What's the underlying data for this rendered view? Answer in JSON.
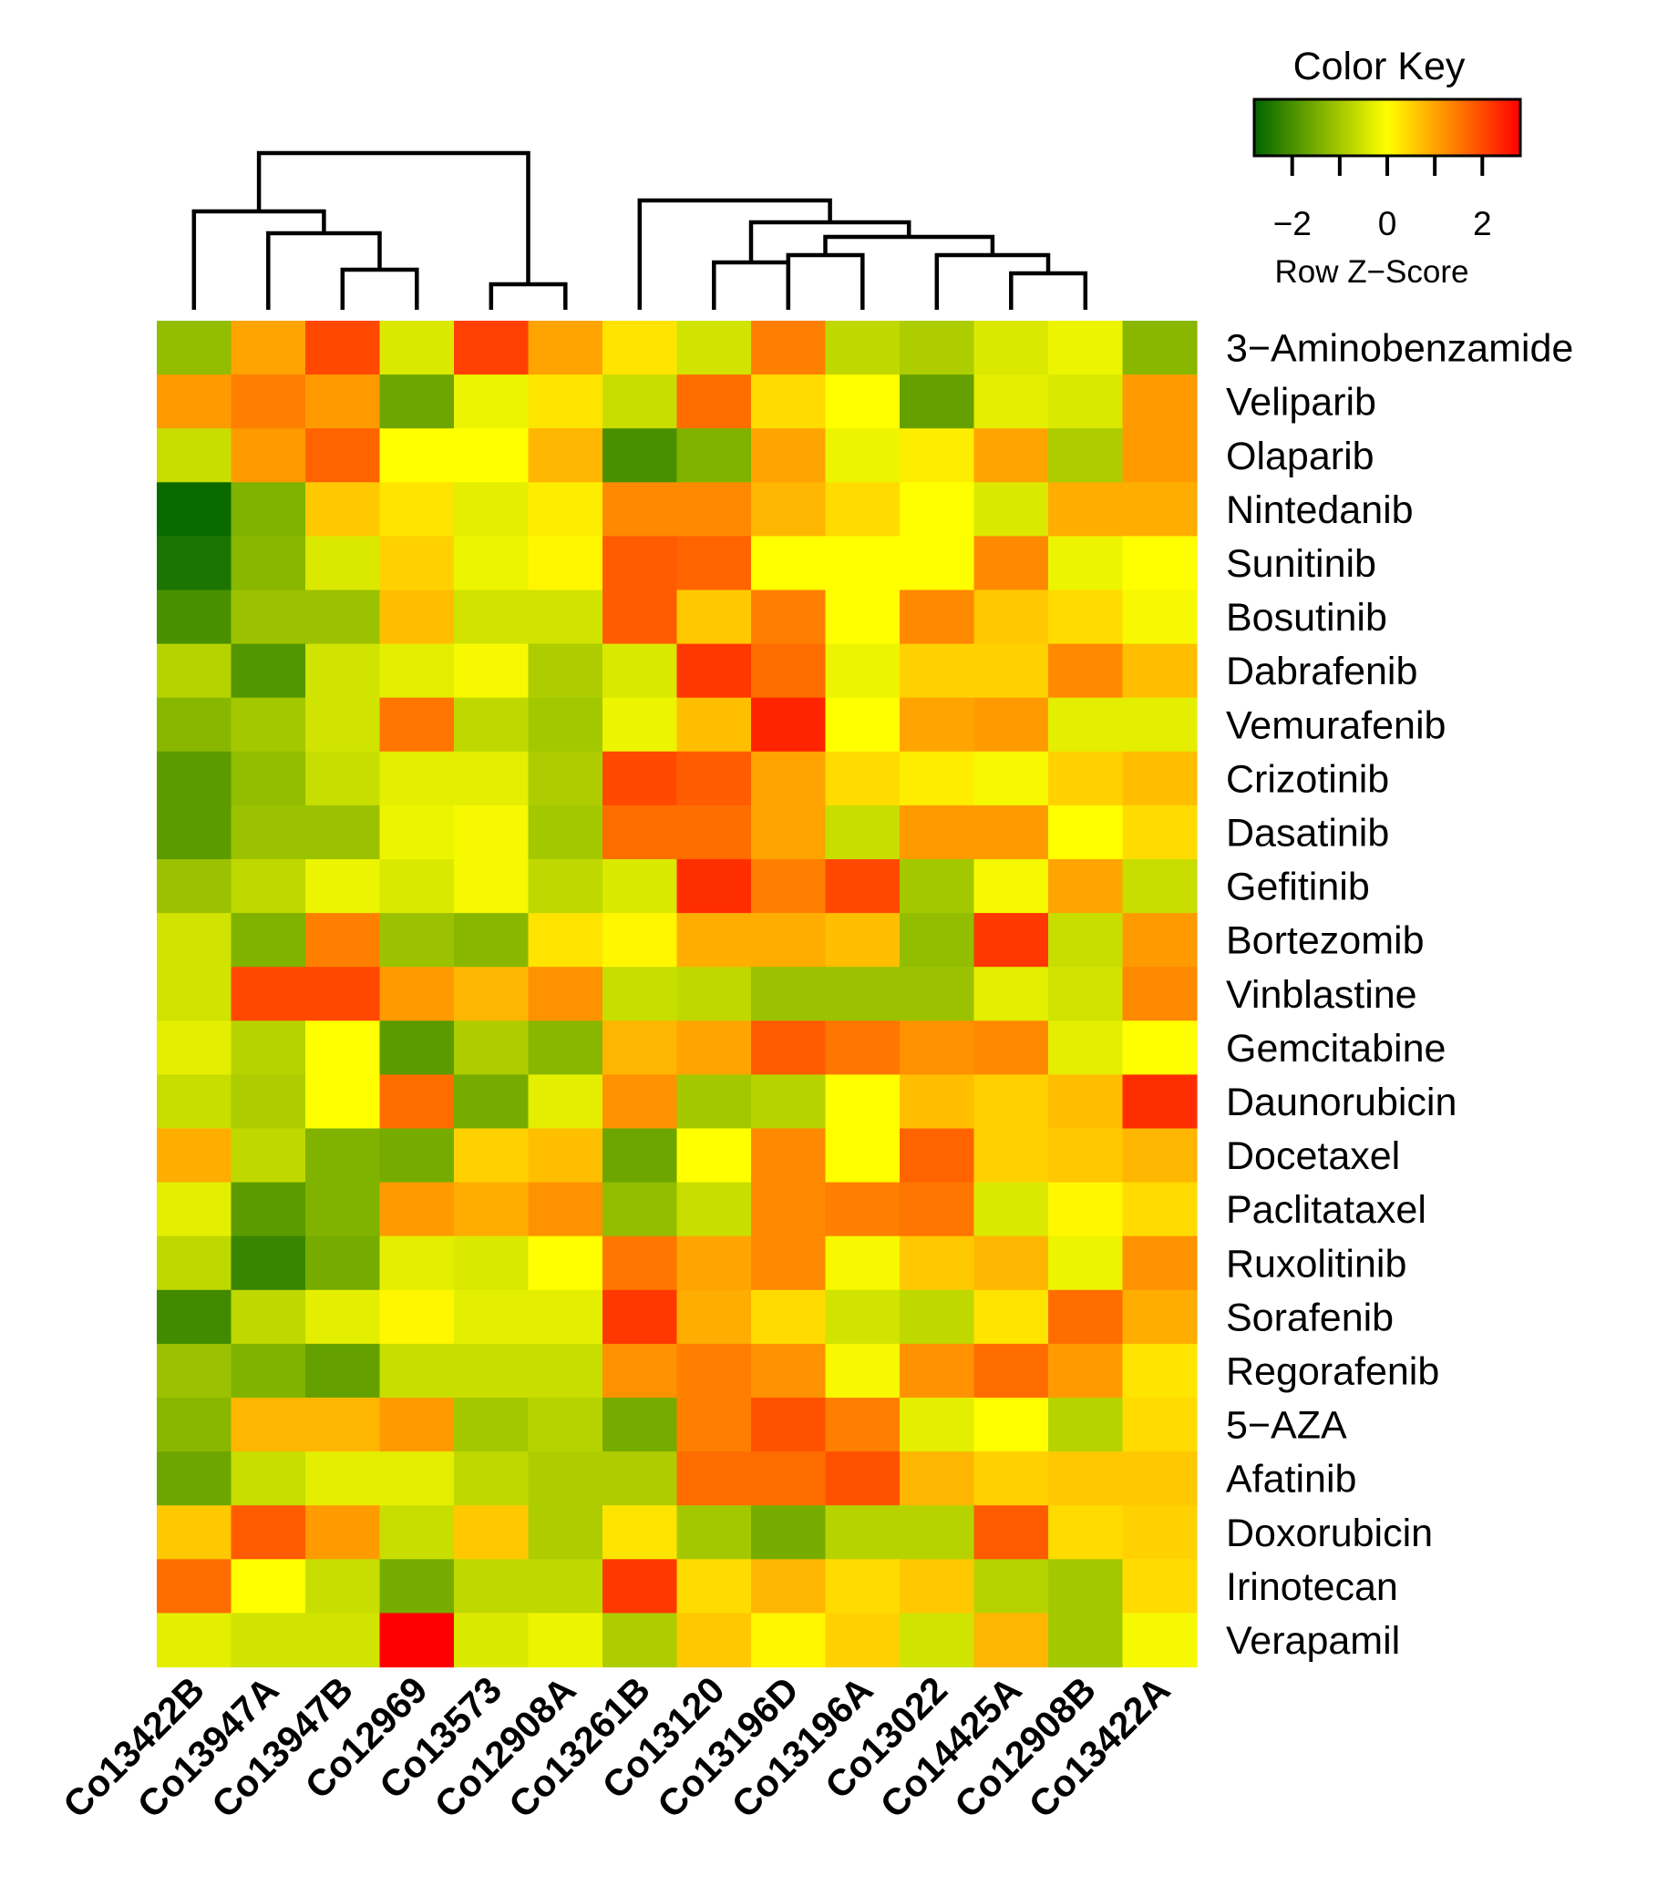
{
  "chart_data": {
    "type": "heatmap",
    "rows": [
      "3−Aminobenzamide",
      "Veliparib",
      "Olaparib",
      "Nintedanib",
      "Sunitinib",
      "Bosutinib",
      "Dabrafenib",
      "Vemurafenib",
      "Crizotinib",
      "Dasatinib",
      "Gefitinib",
      "Bortezomib",
      "Vinblastine",
      "Gemcitabine",
      "Daunorubicin",
      "Docetaxel",
      "Paclitataxel",
      "Ruxolitinib",
      "Sorafenib",
      "Regorafenib",
      "5−AZA",
      "Afatinib",
      "Doxorubicin",
      "Irinotecan",
      "Verapamil"
    ],
    "columns": [
      "Co13422B",
      "Co13947A",
      "Co13947B",
      "Co12969",
      "Co13573",
      "Co12908A",
      "Co13261B",
      "Co13120",
      "Co13196D",
      "Co13196A",
      "Co13022",
      "Co14425A",
      "Co12908B",
      "Co13422A"
    ],
    "values": [
      [
        -1.2,
        1.0,
        2.0,
        -0.4,
        2.1,
        1.0,
        0.3,
        -0.5,
        1.4,
        -0.7,
        -0.9,
        -0.4,
        -0.2,
        -1.3
      ],
      [
        1.1,
        1.4,
        1.1,
        -1.6,
        -0.2,
        0.3,
        -0.6,
        1.6,
        0.4,
        0.0,
        -1.7,
        -0.3,
        -0.4,
        1.1
      ],
      [
        -0.6,
        1.1,
        1.7,
        0.0,
        0.0,
        0.8,
        -2.0,
        -1.4,
        1.0,
        -0.2,
        0.2,
        1.0,
        -0.9,
        1.1
      ],
      [
        -2.7,
        -1.4,
        0.6,
        0.3,
        -0.3,
        0.2,
        1.3,
        1.3,
        0.8,
        0.4,
        0.0,
        -0.4,
        0.9,
        0.9
      ],
      [
        -2.5,
        -1.3,
        -0.4,
        0.5,
        -0.2,
        0.1,
        1.8,
        1.7,
        0.0,
        0.0,
        0.0,
        1.3,
        -0.2,
        0.0
      ],
      [
        -2.0,
        -1.1,
        -1.1,
        0.7,
        -0.5,
        -0.5,
        1.8,
        0.6,
        1.4,
        0.0,
        1.3,
        0.6,
        0.4,
        -0.1
      ],
      [
        -0.8,
        -1.9,
        -0.5,
        -0.3,
        -0.1,
        -0.9,
        -0.4,
        2.2,
        1.6,
        -0.2,
        0.5,
        0.5,
        1.3,
        0.7
      ],
      [
        -1.3,
        -1.0,
        -0.5,
        1.5,
        -0.7,
        -1.0,
        -0.2,
        0.7,
        2.4,
        0.0,
        1.0,
        1.1,
        -0.3,
        -0.3
      ],
      [
        -1.8,
        -1.2,
        -0.6,
        -0.3,
        -0.3,
        -0.9,
        2.0,
        1.8,
        1.0,
        0.4,
        0.2,
        -0.1,
        0.5,
        0.7
      ],
      [
        -1.8,
        -1.1,
        -1.1,
        -0.2,
        -0.1,
        -1.0,
        1.6,
        1.6,
        1.0,
        -0.6,
        1.1,
        1.1,
        0.0,
        0.4
      ],
      [
        -1.1,
        -0.7,
        -0.2,
        -0.4,
        -0.1,
        -0.7,
        -0.4,
        2.3,
        1.4,
        2.0,
        -1.0,
        -0.1,
        1.0,
        -0.6
      ],
      [
        -0.5,
        -1.4,
        1.4,
        -1.1,
        -1.3,
        0.3,
        0.1,
        0.9,
        0.9,
        0.7,
        -1.2,
        2.2,
        -0.6,
        1.1
      ],
      [
        -0.5,
        2.0,
        2.0,
        1.1,
        0.8,
        1.2,
        -0.6,
        -0.7,
        -1.1,
        -1.1,
        -1.1,
        -0.3,
        -0.5,
        1.3
      ],
      [
        -0.3,
        -0.8,
        0.0,
        -1.8,
        -0.9,
        -1.3,
        0.8,
        1.0,
        1.8,
        1.5,
        1.2,
        1.3,
        -0.3,
        0.0
      ],
      [
        -0.6,
        -0.9,
        0.0,
        1.6,
        -1.5,
        -0.3,
        1.2,
        -1.0,
        -0.8,
        0.0,
        0.7,
        0.5,
        0.7,
        2.3
      ],
      [
        0.9,
        -0.7,
        -1.4,
        -1.5,
        0.5,
        0.7,
        -1.6,
        0.0,
        1.3,
        0.0,
        1.7,
        0.5,
        0.6,
        0.8
      ],
      [
        -0.3,
        -1.8,
        -1.4,
        1.1,
        0.9,
        1.2,
        -1.2,
        -0.6,
        1.3,
        1.4,
        1.5,
        -0.4,
        0.1,
        0.4
      ],
      [
        -0.7,
        -2.2,
        -1.5,
        -0.3,
        -0.4,
        0.0,
        1.5,
        1.0,
        1.3,
        -0.1,
        0.6,
        0.8,
        -0.2,
        1.2
      ],
      [
        -2.1,
        -0.7,
        -0.3,
        0.1,
        -0.3,
        -0.3,
        2.2,
        0.9,
        0.4,
        -0.5,
        -0.7,
        0.3,
        1.6,
        0.9
      ],
      [
        -1.1,
        -1.4,
        -1.7,
        -0.6,
        -0.6,
        -0.6,
        1.2,
        1.4,
        1.2,
        -0.1,
        1.2,
        1.6,
        1.1,
        0.3
      ],
      [
        -1.3,
        0.8,
        0.8,
        1.1,
        -1.0,
        -0.8,
        -1.5,
        1.4,
        1.9,
        1.4,
        -0.3,
        0.0,
        -0.8,
        0.4
      ],
      [
        -1.6,
        -0.6,
        -0.3,
        -0.3,
        -0.7,
        -0.9,
        -0.9,
        1.6,
        1.6,
        1.9,
        0.8,
        0.5,
        0.6,
        0.6
      ],
      [
        0.6,
        1.8,
        1.1,
        -0.6,
        0.6,
        -0.9,
        0.3,
        -1.0,
        -1.5,
        -0.8,
        -0.8,
        1.8,
        0.4,
        0.5
      ],
      [
        1.6,
        0.0,
        -0.6,
        -1.5,
        -0.7,
        -0.7,
        2.2,
        0.4,
        0.8,
        0.4,
        0.6,
        -0.8,
        -1.0,
        0.4
      ],
      [
        -0.3,
        -0.5,
        -0.5,
        2.8,
        -0.4,
        -0.2,
        -0.9,
        0.6,
        0.1,
        0.5,
        -0.5,
        0.8,
        -1.0,
        -0.1
      ]
    ],
    "color_scale": [
      "#006400",
      "#ffff00",
      "#ff0000"
    ],
    "color_key": {
      "title": "Color Key",
      "xlabel": "Row Z−Score",
      "ticks": [
        "−2",
        "0",
        "2"
      ],
      "range": [
        -2.8,
        2.8
      ]
    },
    "column_dendrogram": [
      [
        9,
        10,
        -0.75
      ],
      [
        12,
        13,
        -0.5
      ],
      [
        11,
        -2,
        -0.75
      ],
      [
        -1,
        -3,
        -1.0
      ],
      [
        8,
        9,
        -0.65
      ],
      [
        -4,
        -5,
        -1.2
      ],
      [
        7,
        -6,
        -1.5
      ],
      [
        5,
        6,
        -0.35
      ],
      [
        3,
        4,
        -0.55
      ],
      [
        2,
        -9,
        -1.05
      ],
      [
        1,
        -10,
        -1.35
      ],
      [
        -8,
        -11,
        -2.15
      ]
    ]
  }
}
